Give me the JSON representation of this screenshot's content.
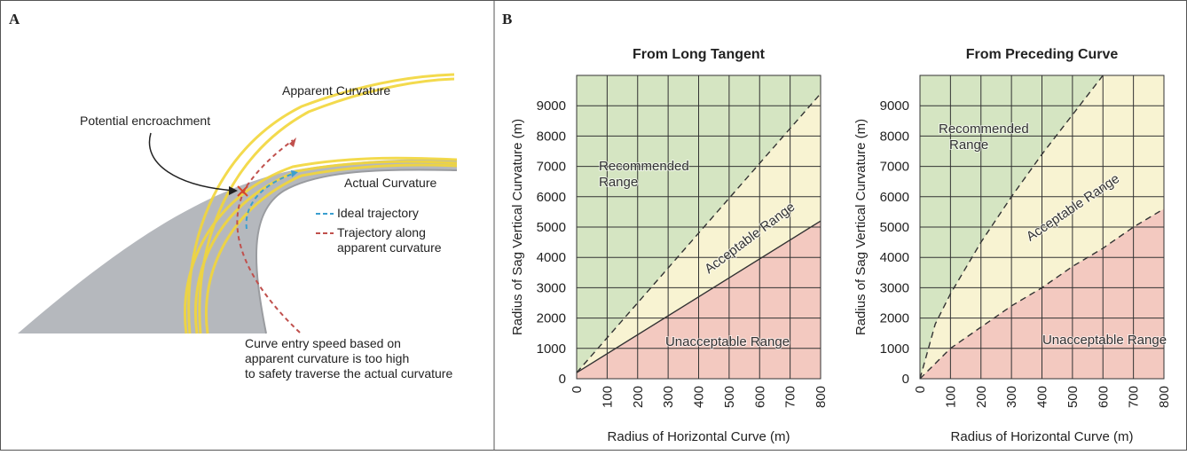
{
  "panel_a": {
    "label": "A",
    "texts": {
      "apparent": "Apparent Curvature",
      "encroachment": "Potential encroachment",
      "actual": "Actual Curvature"
    },
    "legend": [
      {
        "lines": [
          "Ideal trajectory"
        ],
        "color": "#3a9fd0"
      },
      {
        "lines": [
          "Trajectory along",
          "apparent curvature"
        ],
        "color": "#c0504d"
      }
    ],
    "caption": [
      "Curve entry speed based on",
      "apparent curvature is too high",
      "to safety traverse the actual curvature"
    ]
  },
  "panel_b": {
    "label": "B"
  },
  "chart_data": [
    {
      "type": "region",
      "title": "From Long Tangent",
      "x_label": "Radius of Horizontal Curve  (m)",
      "y_label": "Radius of Sag Vertical Curvature (m)",
      "xlim": [
        0,
        800
      ],
      "xticks": [
        0,
        100,
        200,
        300,
        400,
        500,
        600,
        700,
        800
      ],
      "ylim": [
        0,
        10000
      ],
      "yticks": [
        0,
        1000,
        2000,
        3000,
        4000,
        5000,
        6000,
        7000,
        8000,
        9000
      ],
      "grid": true,
      "lines": [
        {
          "x": [
            0,
            800
          ],
          "values": [
            200,
            9400
          ],
          "style": "dashed"
        },
        {
          "x": [
            0,
            800
          ],
          "values": [
            200,
            5200
          ],
          "style": "solid"
        }
      ],
      "regions": [
        {
          "lines": [
            "Recommended",
            "Range"
          ],
          "color": "#d5e5c2"
        },
        {
          "lines": [
            "Acceptable Range"
          ],
          "color": "#f8f3d2"
        },
        {
          "lines": [
            "Unacceptable Range"
          ],
          "color": "#f3c9c0"
        }
      ]
    },
    {
      "type": "region",
      "title": "From Preceding Curve",
      "x_label": "Radius of Horizontal Curve  (m)",
      "y_label": "Radius of Sag Vertical Curvature (m)",
      "xlim": [
        0,
        800
      ],
      "xticks": [
        0,
        100,
        200,
        300,
        400,
        500,
        600,
        700,
        800
      ],
      "ylim": [
        0,
        10000
      ],
      "yticks": [
        0,
        1000,
        2000,
        3000,
        4000,
        5000,
        6000,
        7000,
        8000,
        9000
      ],
      "grid": true,
      "lines": [
        {
          "x": [
            0,
            50,
            100,
            200,
            300,
            400,
            500,
            600
          ],
          "values": [
            0,
            1800,
            2800,
            4500,
            6000,
            7400,
            8700,
            10000
          ],
          "style": "dashed"
        },
        {
          "x": [
            0,
            100,
            200,
            300,
            400,
            500,
            600,
            700,
            800
          ],
          "values": [
            0,
            1000,
            1700,
            2400,
            3000,
            3700,
            4300,
            5000,
            5600
          ],
          "style": "dashed"
        }
      ],
      "regions": [
        {
          "lines": [
            "Recommended",
            "Range"
          ],
          "color": "#d5e5c2"
        },
        {
          "lines": [
            "Acceptable Range"
          ],
          "color": "#f8f3d2"
        },
        {
          "lines": [
            "Unacceptable Range"
          ],
          "color": "#f3c9c0"
        }
      ]
    }
  ]
}
